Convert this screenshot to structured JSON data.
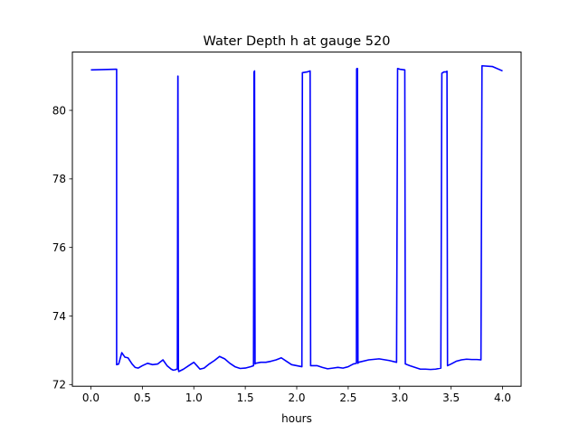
{
  "chart_data": {
    "type": "line",
    "title": "Water Depth h at gauge 520",
    "xlabel": "hours",
    "ylabel": "",
    "xlim": [
      -0.18,
      4.18
    ],
    "ylim": [
      71.95,
      81.7
    ],
    "xticks": [
      0.0,
      0.5,
      1.0,
      1.5,
      2.0,
      2.5,
      3.0,
      3.5,
      4.0
    ],
    "xtick_labels": [
      "0.0",
      "0.5",
      "1.0",
      "1.5",
      "2.0",
      "2.5",
      "3.0",
      "3.5",
      "4.0"
    ],
    "yticks": [
      72,
      74,
      76,
      78,
      80
    ],
    "ytick_labels": [
      "72",
      "74",
      "76",
      "78",
      "80"
    ],
    "grid": false,
    "series": [
      {
        "color": "#0000ff",
        "x": [
          0.0,
          0.25,
          0.25,
          0.27,
          0.3,
          0.33,
          0.36,
          0.4,
          0.43,
          0.46,
          0.5,
          0.55,
          0.6,
          0.65,
          0.7,
          0.74,
          0.78,
          0.8,
          0.82,
          0.84,
          0.845,
          0.846,
          0.85,
          0.852,
          0.854,
          0.9,
          0.95,
          1.0,
          1.03,
          1.06,
          1.1,
          1.15,
          1.2,
          1.25,
          1.3,
          1.35,
          1.4,
          1.45,
          1.5,
          1.55,
          1.58,
          1.585,
          1.59,
          1.595,
          1.6,
          1.65,
          1.7,
          1.75,
          1.8,
          1.85,
          1.9,
          1.95,
          2.0,
          2.05,
          2.055,
          2.06,
          2.1,
          2.13,
          2.135,
          2.2,
          2.25,
          2.3,
          2.35,
          2.4,
          2.45,
          2.5,
          2.55,
          2.58,
          2.582,
          2.584,
          2.59,
          2.595,
          2.6,
          2.7,
          2.8,
          2.9,
          2.97,
          2.98,
          3.0,
          3.05,
          3.055,
          3.1,
          3.15,
          3.2,
          3.25,
          3.3,
          3.35,
          3.4,
          3.41,
          3.43,
          3.45,
          3.46,
          3.465,
          3.5,
          3.55,
          3.6,
          3.65,
          3.7,
          3.75,
          3.79,
          3.8,
          3.9,
          4.0
        ],
        "y": [
          81.18,
          81.2,
          72.58,
          72.6,
          72.93,
          72.8,
          72.78,
          72.6,
          72.5,
          72.48,
          72.55,
          72.62,
          72.58,
          72.6,
          72.72,
          72.55,
          72.45,
          72.42,
          72.43,
          72.46,
          81.0,
          81.0,
          72.45,
          72.4,
          72.38,
          72.45,
          72.55,
          72.65,
          72.55,
          72.45,
          72.48,
          72.6,
          72.7,
          72.82,
          72.75,
          72.62,
          72.52,
          72.47,
          72.48,
          72.52,
          72.55,
          81.12,
          81.15,
          72.6,
          72.62,
          72.65,
          72.65,
          72.68,
          72.72,
          72.78,
          72.68,
          72.58,
          72.55,
          72.52,
          81.1,
          81.1,
          81.12,
          81.15,
          72.55,
          72.55,
          72.5,
          72.46,
          72.48,
          72.5,
          72.48,
          72.52,
          72.6,
          72.62,
          81.2,
          81.22,
          81.22,
          72.62,
          72.65,
          72.72,
          72.75,
          72.7,
          72.65,
          81.22,
          81.2,
          81.18,
          72.6,
          72.55,
          72.5,
          72.45,
          72.45,
          72.44,
          72.45,
          72.48,
          81.08,
          81.12,
          81.12,
          81.14,
          72.55,
          72.6,
          72.68,
          72.72,
          72.74,
          72.73,
          72.73,
          72.72,
          81.3,
          81.28,
          81.15
        ]
      }
    ]
  }
}
